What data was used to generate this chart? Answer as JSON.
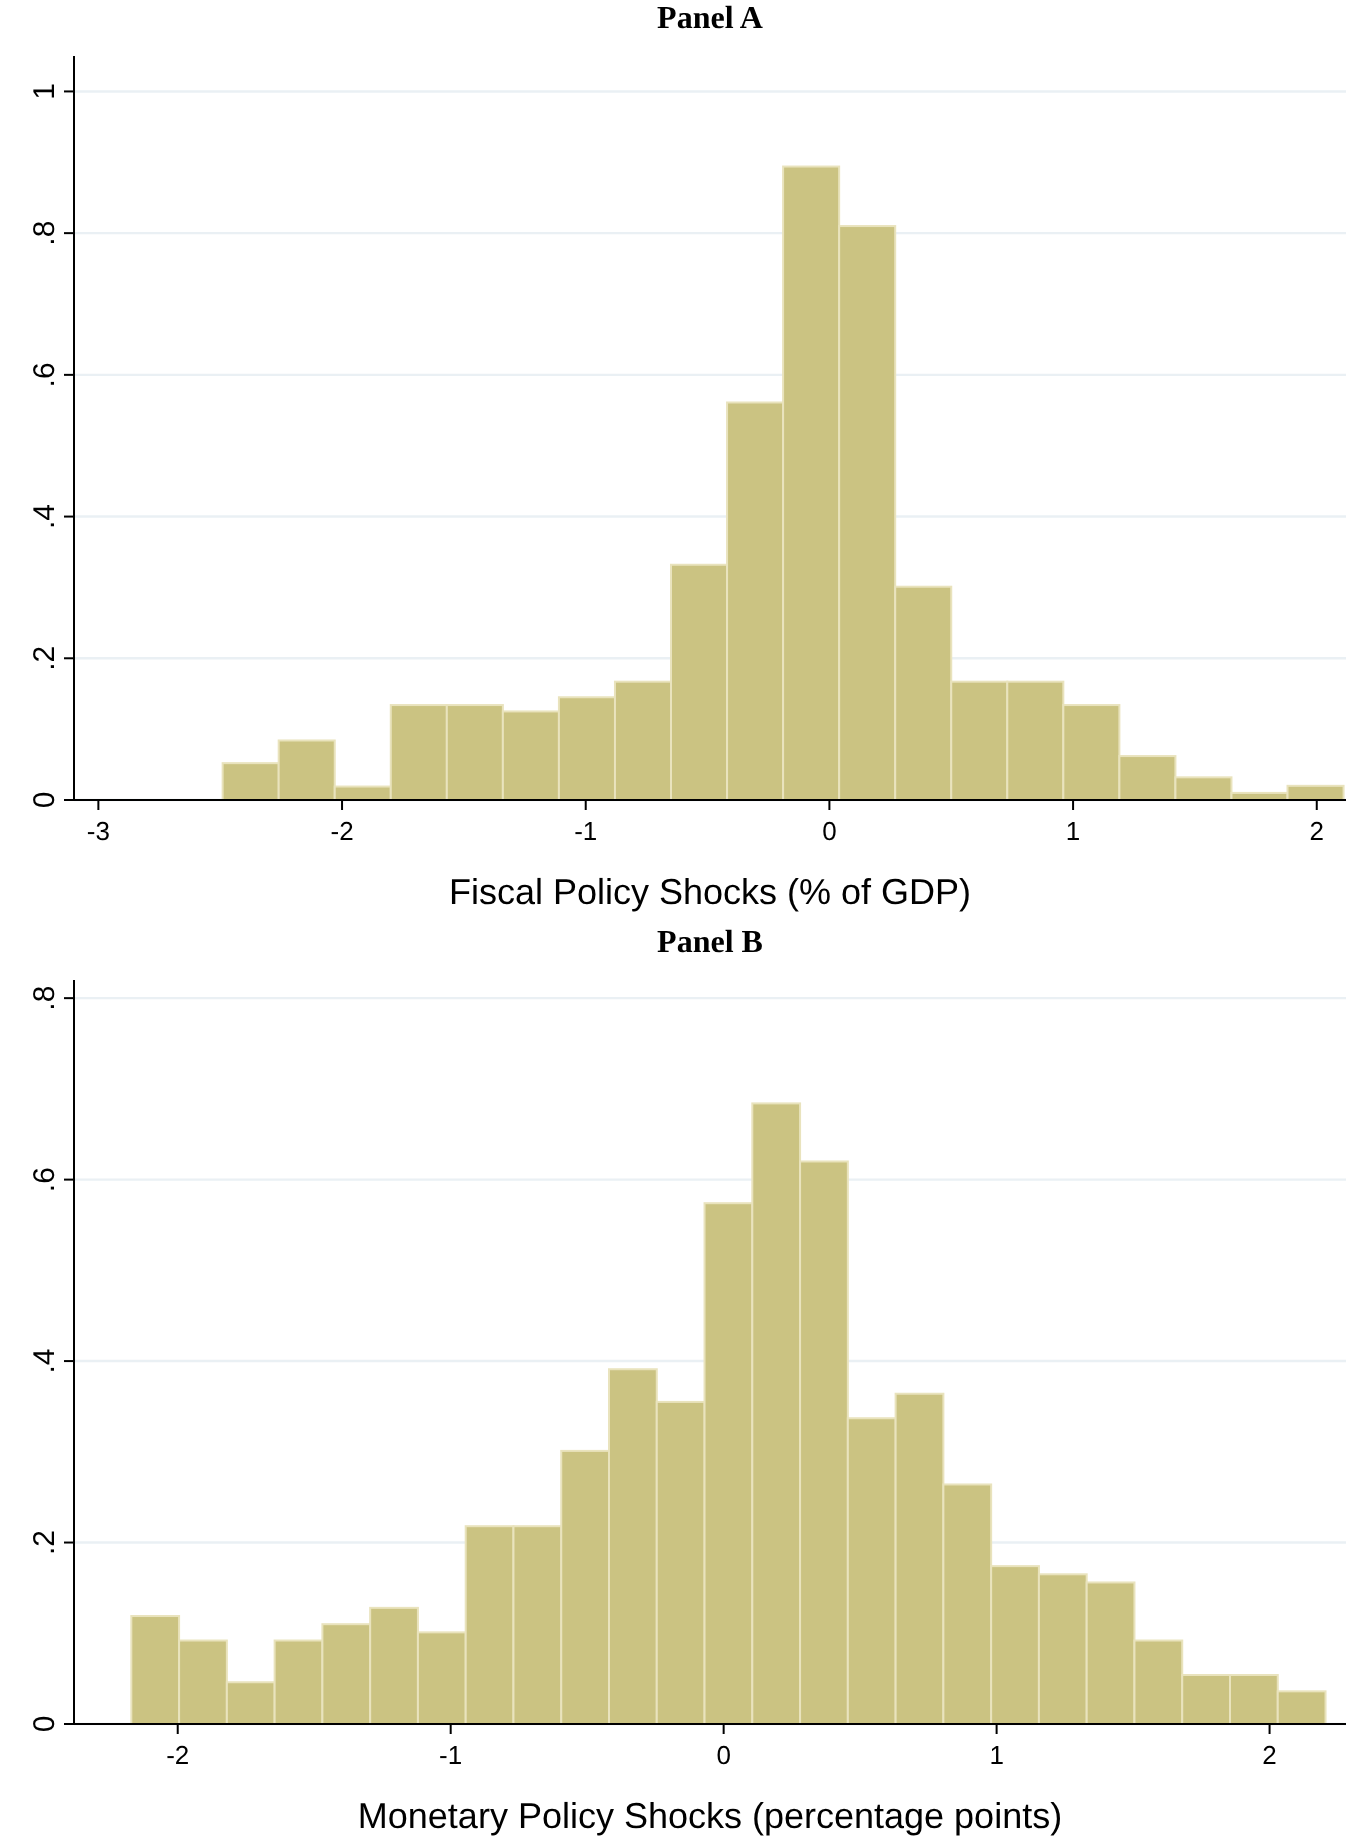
{
  "chart_data": [
    {
      "type": "histogram",
      "title": "Panel A",
      "xlabel": "Fiscal Policy Shocks (% of GDP)",
      "color": "#cbc382",
      "grid": "y",
      "bins": [
        -2.49,
        -2.26,
        -2.03,
        -1.8,
        -1.57,
        -1.34,
        -1.11,
        -0.88,
        -0.65,
        -0.42,
        -0.19,
        0.04,
        0.27,
        0.5,
        0.73,
        0.96,
        1.19,
        1.42,
        1.65,
        1.88,
        2.11
      ],
      "values": [
        0.052,
        0.084,
        0.019,
        0.134,
        0.134,
        0.125,
        0.145,
        0.167,
        0.332,
        0.561,
        0.894,
        0.81,
        0.301,
        0.167,
        0.167,
        0.134,
        0.062,
        0.032,
        0.01,
        0.02
      ],
      "xlim": [
        -3.1,
        2.12
      ],
      "xticks": [
        -3,
        -2,
        -1,
        {
          "value": 0,
          "label": "0"
        },
        1,
        2
      ],
      "ylim": [
        0,
        1.05
      ],
      "yticks": [
        {
          "value": 0,
          "label": "0"
        },
        {
          "value": 0.2,
          "label": ".2"
        },
        {
          "value": 0.4,
          "label": ".4"
        },
        {
          "value": 0.6,
          "label": ".6"
        },
        {
          "value": 0.8,
          "label": ".8"
        },
        1
      ]
    },
    {
      "type": "histogram",
      "title": "Panel B",
      "xlabel": "Monetary Policy Shocks (percentage points)",
      "color": "#cbc382",
      "grid": "y",
      "bins": [
        -2.17,
        -1.995,
        -1.82,
        -1.645,
        -1.47,
        -1.295,
        -1.12,
        -0.945,
        -0.77,
        -0.595,
        -0.42,
        -0.245,
        -0.07,
        0.105,
        0.28,
        0.455,
        0.63,
        0.805,
        0.98,
        1.155,
        1.33,
        1.505,
        1.68,
        1.855,
        2.03,
        2.205
      ],
      "values": [
        0.119,
        0.092,
        0.046,
        0.092,
        0.11,
        0.128,
        0.101,
        0.218,
        0.218,
        0.301,
        0.391,
        0.355,
        0.574,
        0.684,
        0.62,
        0.337,
        0.364,
        0.264,
        0.174,
        0.165,
        0.156,
        0.092,
        0.054,
        0.054,
        0.036
      ],
      "xlim": [
        -2.38,
        2.28
      ],
      "xticks": [
        -2,
        -1,
        {
          "value": 0,
          "label": "0"
        },
        1,
        2
      ],
      "ylim": [
        0,
        0.82
      ],
      "yticks": [
        {
          "value": 0,
          "label": "0"
        },
        {
          "value": 0.2,
          "label": ".2"
        },
        {
          "value": 0.4,
          "label": ".4"
        },
        {
          "value": 0.6,
          "label": ".6"
        },
        {
          "value": 0.8,
          "label": ".8"
        }
      ]
    }
  ]
}
